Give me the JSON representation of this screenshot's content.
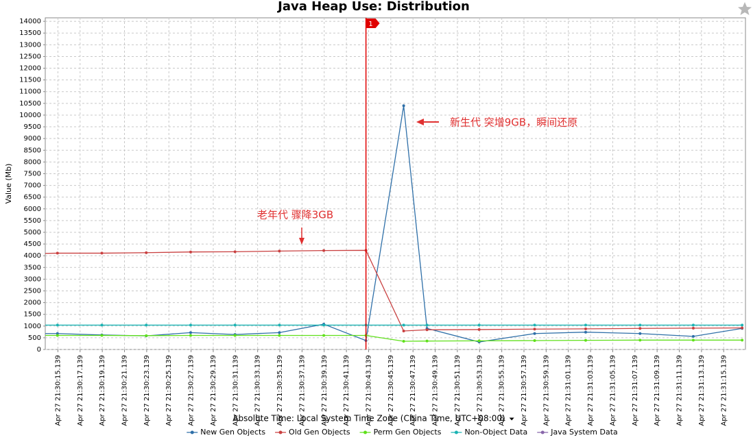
{
  "chart_data": {
    "type": "line",
    "title": "Java Heap Use: Distribution",
    "y_label": "Value (Mb)",
    "x_label": "Absolute Time: Local System Time Zone (China Time, UTC+08:00)",
    "xlim": [
      "Apr 27 21:30:14.000",
      "Apr 27 21:31:17.100"
    ],
    "ylim": [
      0,
      14150
    ],
    "yticks": [
      0,
      500,
      1000,
      1500,
      2000,
      2500,
      3000,
      3500,
      4000,
      4500,
      5000,
      5500,
      6000,
      6500,
      7000,
      7500,
      8000,
      8500,
      9000,
      9500,
      10000,
      10500,
      11000,
      11500,
      12000,
      12500,
      13000,
      13500,
      14000
    ],
    "xticks": [
      "Apr 27 21:30:15.139",
      "Apr 27 21:30:17.139",
      "Apr 27 21:30:19.139",
      "Apr 27 21:30:21.139",
      "Apr 27 21:30:23.139",
      "Apr 27 21:30:25.139",
      "Apr 27 21:30:27.139",
      "Apr 27 21:30:29.139",
      "Apr 27 21:30:31.139",
      "Apr 27 21:30:33.139",
      "Apr 27 21:30:35.139",
      "Apr 27 21:30:37.139",
      "Apr 27 21:30:39.139",
      "Apr 27 21:30:41.139",
      "Apr 27 21:30:43.139",
      "Apr 27 21:30:45.139",
      "Apr 27 21:30:47.139",
      "Apr 27 21:30:49.139",
      "Apr 27 21:30:51.139",
      "Apr 27 21:30:53.139",
      "Apr 27 21:30:55.139",
      "Apr 27 21:30:57.139",
      "Apr 27 21:30:59.139",
      "Apr 27 21:31:01.139",
      "Apr 27 21:31:03.139",
      "Apr 27 21:31:05.139",
      "Apr 27 21:31:07.139",
      "Apr 27 21:31:09.139",
      "Apr 27 21:31:11.139",
      "Apr 27 21:31:13.139",
      "Apr 27 21:31:15.139"
    ],
    "grid": true,
    "x": [
      "Apr 27 21:30:14.000",
      "Apr 27 21:30:15.100",
      "Apr 27 21:30:19.100",
      "Apr 27 21:30:23.100",
      "Apr 27 21:30:27.100",
      "Apr 27 21:30:31.100",
      "Apr 27 21:30:35.100",
      "Apr 27 21:30:39.100",
      "Apr 27 21:30:42.900",
      "Apr 27 21:30:46.300",
      "Apr 27 21:30:48.400",
      "Apr 27 21:30:53.100",
      "Apr 27 21:30:58.100",
      "Apr 27 21:31:02.700",
      "Apr 27 21:31:07.600",
      "Apr 27 21:31:12.400",
      "Apr 27 21:31:16.800"
    ],
    "series": [
      {
        "name": "New Gen Objects",
        "color": "#2e6fa8",
        "values": [
          680,
          680,
          620,
          580,
          720,
          640,
          720,
          1080,
          380,
          10400,
          900,
          320,
          680,
          740,
          680,
          560,
          900
        ]
      },
      {
        "name": "Old Gen Objects",
        "color": "#c94040",
        "values": [
          4100,
          4110,
          4110,
          4130,
          4160,
          4170,
          4200,
          4220,
          4230,
          790,
          840,
          850,
          870,
          880,
          900,
          910,
          920
        ]
      },
      {
        "name": "Perm Gen Objects",
        "color": "#5fe01a",
        "values": [
          600,
          600,
          600,
          590,
          600,
          600,
          600,
          600,
          600,
          350,
          360,
          370,
          380,
          390,
          400,
          400,
          400
        ]
      },
      {
        "name": "Non-Object Data",
        "color": "#1ab3b3",
        "values": [
          1040,
          1040,
          1040,
          1040,
          1040,
          1040,
          1040,
          1040,
          1040,
          1040,
          1040,
          1040,
          1040,
          1040,
          1040,
          1040,
          1040
        ]
      },
      {
        "name": "Java System Data",
        "color": "#8866aa",
        "values": [
          null,
          null,
          null,
          null,
          null,
          null,
          null,
          null,
          null,
          null,
          null,
          null,
          null,
          null,
          null,
          null,
          null
        ]
      }
    ],
    "markers": [
      {
        "x": "Apr 27 21:30:42.900",
        "label": "1"
      }
    ],
    "annotations": [
      {
        "text": "新生代 突增9GB，瞬间还原"
      },
      {
        "text": "老年代 骤降3GB"
      }
    ]
  }
}
